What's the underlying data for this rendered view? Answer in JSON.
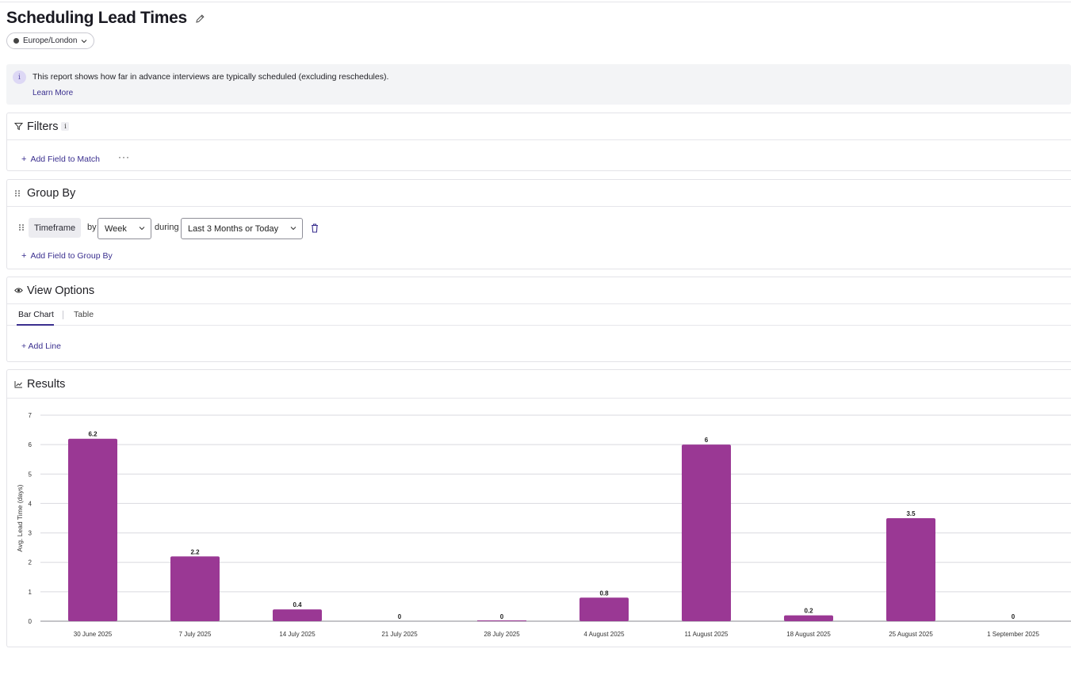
{
  "page": {
    "title": "Scheduling Lead Times",
    "timezone": "Europe/London"
  },
  "info": {
    "text": "This report shows how far in advance interviews are typically scheduled (excluding reschedules).",
    "learn_more": "Learn More"
  },
  "filters": {
    "title": "Filters",
    "info_glyph": "i",
    "add_field": "Add Field to Match",
    "more": "···"
  },
  "group_by": {
    "title": "Group By",
    "field": "Timeframe",
    "by_word": "by",
    "interval": "Week",
    "during_word": "during",
    "range": "Last 3 Months or Today",
    "add_field": "Add Field to Group By"
  },
  "view_options": {
    "title": "View Options",
    "tabs": [
      "Bar Chart",
      "Table"
    ],
    "active_tab": "Bar Chart",
    "add_line": "+ Add Line"
  },
  "results": {
    "title": "Results"
  },
  "colors": {
    "bar": "#9a3894",
    "accent": "#3a2f8f"
  },
  "icons": {
    "edit": "pencil-icon",
    "timezone": "clock-dot-icon",
    "info": "info-icon",
    "filter": "funnel-icon",
    "group": "drag-grip-icon",
    "view": "eye-icon",
    "results": "line-chart-icon",
    "delete": "trash-icon"
  },
  "chart_data": {
    "type": "bar",
    "categories": [
      "30 June 2025",
      "7 July 2025",
      "14 July 2025",
      "21 July 2025",
      "28 July 2025",
      "4 August 2025",
      "11 August 2025",
      "18 August 2025",
      "25 August 2025",
      "1 September 2025"
    ],
    "series": [
      {
        "values": [
          6.2,
          2.2,
          0.4,
          0,
          0,
          0.8,
          6,
          0.2,
          3.5,
          0
        ]
      }
    ],
    "data_labels": [
      "6.2",
      "2.2",
      "0.4",
      "0",
      "0",
      "0.8",
      "6",
      "0.2",
      "3.5",
      "0"
    ],
    "ylabel": "Avg. Lead Time (days)",
    "xlabel": "",
    "ylim": [
      0,
      7
    ],
    "yticks": [
      0,
      1,
      2,
      3,
      4,
      5,
      6,
      7
    ],
    "grid": true,
    "legend": "none"
  }
}
